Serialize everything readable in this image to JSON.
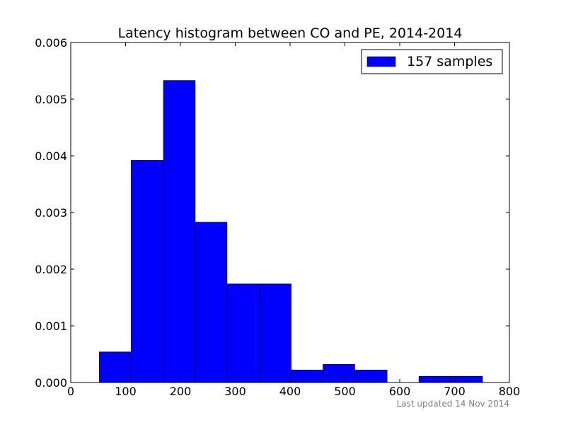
{
  "chart_data": {
    "type": "bar",
    "title": "Latency histogram between CO and PE, 2014-2014",
    "xlabel": "",
    "ylabel": "",
    "xlim": [
      0,
      800
    ],
    "ylim": [
      0,
      0.006
    ],
    "x_ticks": [
      0,
      100,
      200,
      300,
      400,
      500,
      600,
      700,
      800
    ],
    "y_ticks": [
      0.0,
      0.001,
      0.002,
      0.003,
      0.004,
      0.005,
      0.006
    ],
    "y_tick_labels": [
      "0.000",
      "0.001",
      "0.002",
      "0.003",
      "0.004",
      "0.005",
      "0.006"
    ],
    "grid": false,
    "legend_position": "top-right",
    "bar_color": "#0000ff",
    "series": [
      {
        "name": "157 samples",
        "bins": [
          {
            "x0": 52,
            "x1": 110,
            "value": 0.00054
          },
          {
            "x0": 110,
            "x1": 169,
            "value": 0.00392
          },
          {
            "x0": 169,
            "x1": 227,
            "value": 0.00533
          },
          {
            "x0": 227,
            "x1": 285,
            "value": 0.00283
          },
          {
            "x0": 285,
            "x1": 344,
            "value": 0.00174
          },
          {
            "x0": 344,
            "x1": 402,
            "value": 0.00174
          },
          {
            "x0": 402,
            "x1": 460,
            "value": 0.00022
          },
          {
            "x0": 460,
            "x1": 518,
            "value": 0.00032
          },
          {
            "x0": 518,
            "x1": 577,
            "value": 0.00022
          },
          {
            "x0": 577,
            "x1": 635,
            "value": 0.0
          },
          {
            "x0": 635,
            "x1": 693,
            "value": 0.00011
          },
          {
            "x0": 693,
            "x1": 751,
            "value": 0.00011
          }
        ]
      }
    ]
  },
  "footer": {
    "text": "Last updated 14 Nov 2014"
  }
}
